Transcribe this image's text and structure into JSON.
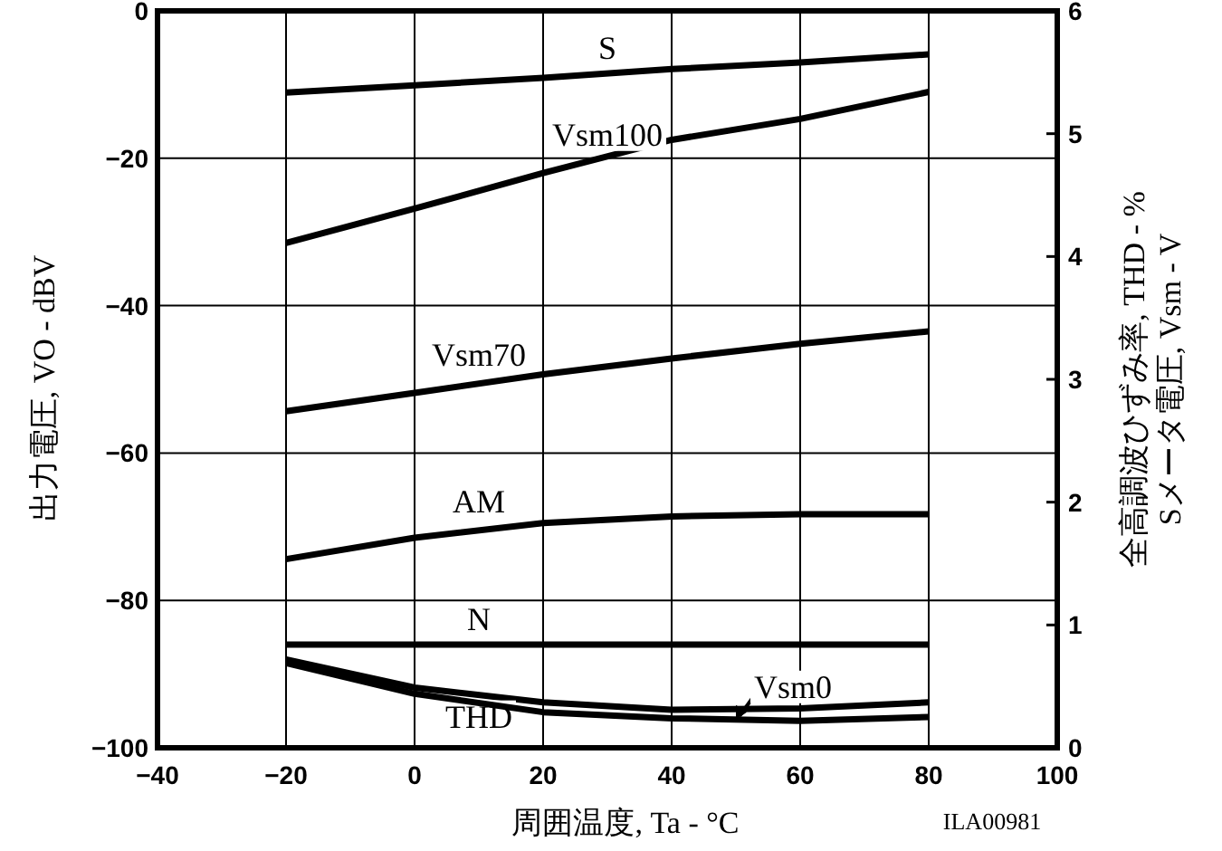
{
  "chart_data": {
    "type": "line",
    "xlabel": "周囲温度, Ta - °C",
    "ylabel": "出力電圧, VO - dBV",
    "y2label": "全高調波ひずみ率, THD - %\nSメータ電圧, Vsm - V",
    "x": [
      -20,
      0,
      20,
      40,
      60,
      80
    ],
    "series": [
      {
        "name": "S",
        "color": "#000000",
        "values": [
          -11.1,
          -10.1,
          -9.1,
          -7.9,
          -7.0,
          -5.9
        ]
      },
      {
        "name": "Vsm100",
        "color": "#000000",
        "axis": "y2",
        "values": [
          4.11,
          4.39,
          4.68,
          4.95,
          5.12,
          5.34
        ]
      },
      {
        "name": "Vsm70",
        "color": "#000000",
        "axis": "y2",
        "values": [
          2.74,
          2.89,
          3.04,
          3.17,
          3.29,
          3.39
        ]
      },
      {
        "name": "AM",
        "color": "#000000",
        "values": [
          -74.4,
          -71.5,
          -69.5,
          -68.6,
          -68.3,
          -68.3
        ]
      },
      {
        "name": "N",
        "color": "#000000",
        "values": [
          -86.0,
          -86.0,
          -86.0,
          -86.0,
          -86.0,
          -86.0
        ]
      },
      {
        "name": "THD",
        "color": "#000000",
        "axis": "y2",
        "values": [
          0.72,
          0.49,
          0.37,
          0.31,
          0.32,
          0.37
        ]
      },
      {
        "name": "Vsm0",
        "color": "#000000",
        "axis": "y2",
        "values": [
          0.69,
          0.44,
          0.29,
          0.24,
          0.22,
          0.25
        ]
      }
    ],
    "xlim": [
      -40,
      100
    ],
    "xticks": [
      -40,
      -20,
      0,
      20,
      40,
      60,
      80,
      100
    ],
    "ylim": [
      -100,
      0
    ],
    "yticks": [
      -100,
      -80,
      -60,
      -40,
      -20,
      0
    ],
    "y2lim": [
      0,
      6
    ],
    "y2ticks": [
      0,
      1,
      2,
      3,
      4,
      5,
      6
    ],
    "grid": true,
    "annotations": [
      "ILA00981"
    ]
  }
}
